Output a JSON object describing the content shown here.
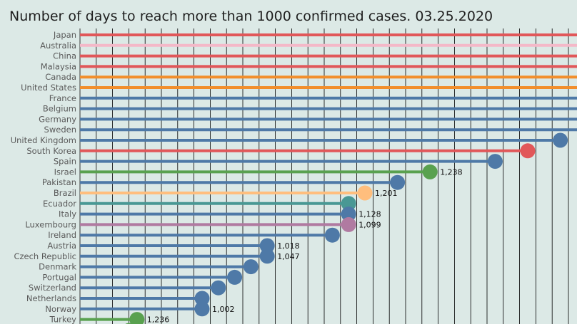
{
  "chart_data": {
    "type": "lollipop",
    "title": "Number of days to reach more than 1000 confirmed cases. 03.25.2020",
    "xlabel": "",
    "ylabel": "",
    "grid": true,
    "categories": [
      "Japan",
      "Australia",
      "China",
      "Malaysia",
      "Canada",
      "United States",
      "France",
      "Belgium",
      "Germany",
      "Sweden",
      "United Kingdom",
      "South Korea",
      "Spain",
      "Israel",
      "Pakistan",
      "Brazil",
      "Ecuador",
      "Italy",
      "Luxembourg",
      "Ireland",
      "Austria",
      "Czech Republic",
      "Denmark",
      "Portugal",
      "Switzerland",
      "Netherlands",
      "Norway",
      "Turkey"
    ],
    "x_days": [
      null,
      null,
      null,
      null,
      null,
      null,
      null,
      null,
      null,
      null,
      29.5,
      27.5,
      25.5,
      21.5,
      19.5,
      17.5,
      16.5,
      16.5,
      16.5,
      15.5,
      11.5,
      11.5,
      10.5,
      9.5,
      8.5,
      7.5,
      7.5,
      3.5
    ],
    "data_labels": [
      "",
      "",
      "",
      "",
      "",
      "",
      "",
      "",
      "",
      "",
      "",
      "",
      "",
      "1,238",
      "",
      "1,201",
      "",
      "1,128",
      "1,099",
      "",
      "1,018",
      "1,047",
      "",
      "",
      "",
      "",
      "1,002",
      "1,236"
    ],
    "colors": [
      "#e15759",
      "#f4b8c8",
      "#e15759",
      "#e15759",
      "#f28e2b",
      "#f28e2b",
      "#4e79a7",
      "#4e79a7",
      "#4e79a7",
      "#4e79a7",
      "#4e79a7",
      "#e15759",
      "#4e79a7",
      "#59a14f",
      "#4e79a7",
      "#ffbe7d",
      "#499894",
      "#4e79a7",
      "#b07aa1",
      "#4e79a7",
      "#4e79a7",
      "#4e79a7",
      "#4e79a7",
      "#4e79a7",
      "#4e79a7",
      "#4e79a7",
      "#4e79a7",
      "#59a14f"
    ],
    "xlim": [
      0,
      30
    ]
  }
}
